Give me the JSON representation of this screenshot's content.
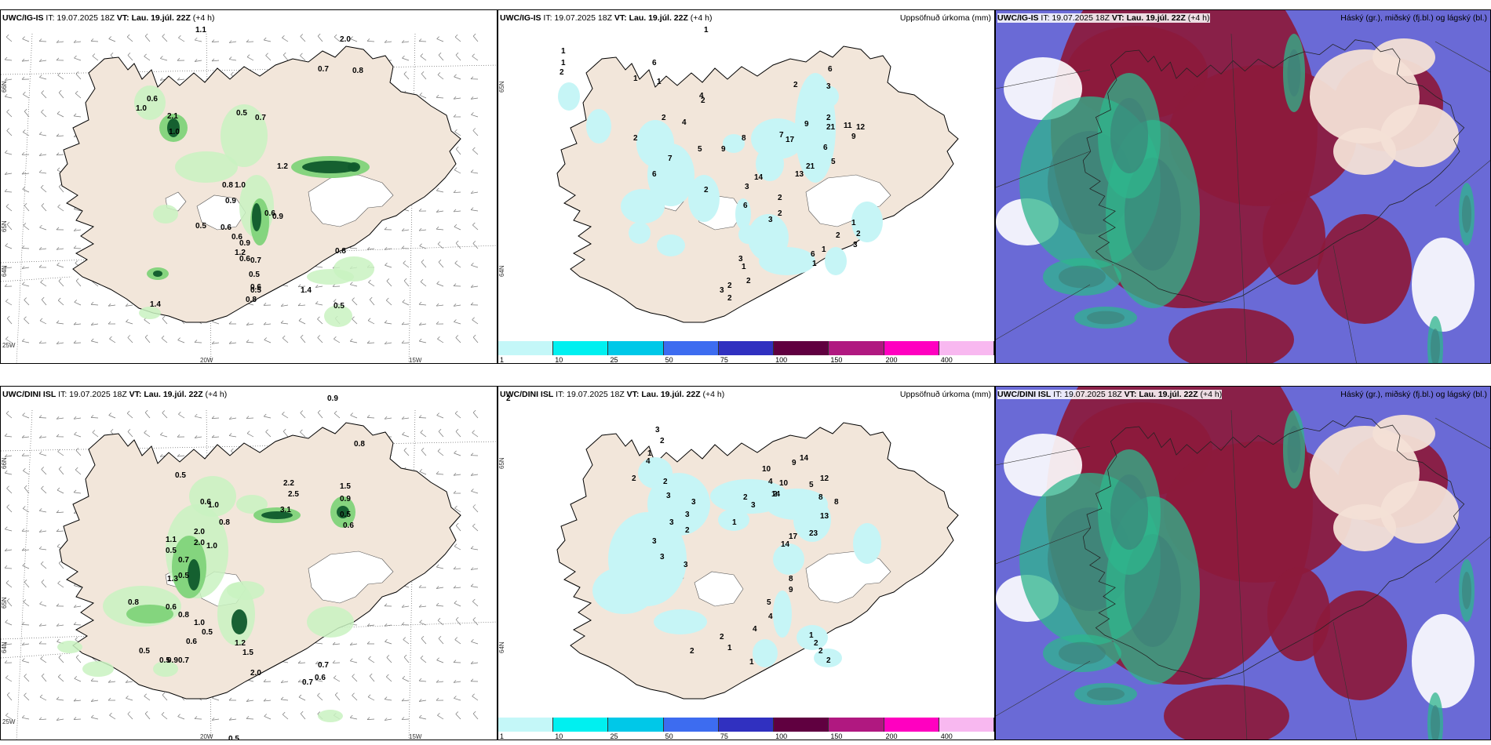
{
  "colors": {
    "land": "#f2e6da",
    "green_light": "#c9f2c1",
    "green_mid": "#7fd37a",
    "green_dark": "#0f5a2c",
    "cyan": "#c6f5f6",
    "cloud_blue": "#6a6ad6",
    "cloud_red": "#8c1a3c",
    "cloud_green": "#2fb58c"
  },
  "top": {
    "p1": {
      "model": "UWC/IG-IS",
      "it": "IT: 19.07.2025 18Z",
      "vt_label": "VT:",
      "vt": "Lau. 19.júl. 22Z",
      "lead": "(+4 h)",
      "lat_ticks": [
        "66N",
        "64N",
        "65N"
      ],
      "lon_ticks": [
        "20W",
        "15W",
        "25W"
      ],
      "labels": [
        [
          "1.1",
          0.74
        ],
        [
          "2.0",
          0.8
        ],
        [
          "0.7",
          0.62
        ],
        [
          "0.8",
          0.69
        ],
        [
          "0.6",
          0.52
        ],
        [
          "1.0",
          0.55
        ],
        [
          "2.1",
          0.6
        ],
        [
          "1.0",
          0.63
        ],
        [
          "0.5",
          0.48
        ],
        [
          "0.7",
          0.52
        ],
        [
          "1.2",
          0.36
        ],
        [
          "0.8",
          0.46
        ],
        [
          "1.0",
          0.5
        ],
        [
          "0.9",
          0.43
        ],
        [
          "0.6",
          0.55
        ],
        [
          "0.9",
          0.57
        ],
        [
          "0.5",
          0.41
        ],
        [
          "0.6",
          0.47
        ],
        [
          "0.6",
          0.5
        ],
        [
          "0.9",
          0.48
        ],
        [
          "1.2",
          0.53
        ],
        [
          "0.6",
          0.56
        ],
        [
          "0.7",
          0.52
        ],
        [
          "0.5",
          0.47
        ],
        [
          "0.6",
          0.5
        ],
        [
          "0.5",
          0.55
        ],
        [
          "0.8",
          0.61
        ],
        [
          "1.4",
          0.34
        ],
        [
          "1.4",
          0.3
        ],
        [
          "0.8",
          0.66
        ],
        [
          "0.5",
          0.68
        ]
      ]
    },
    "p2": {
      "model": "UWC/IG-IS",
      "it": "IT: 19.07.2025 18Z",
      "vt_label": "VT:",
      "vt": "Lau. 19.júl. 22Z",
      "lead": "(+4 h)",
      "title": "Uppsöfnuð úrkoma (mm)",
      "lat_ticks": [
        "65N",
        "64N"
      ],
      "labels": [
        "1",
        "1",
        "1",
        "2",
        "1",
        "6",
        "1",
        "2",
        "4",
        "2",
        "4",
        "2",
        "2",
        "6",
        "3",
        "2",
        "21",
        "11",
        "12",
        "9",
        "7",
        "17",
        "9",
        "6",
        "5",
        "21",
        "13",
        "8",
        "9",
        "5",
        "7",
        "6",
        "2",
        "14",
        "3",
        "6",
        "2",
        "2",
        "3",
        "3",
        "1",
        "2",
        "3",
        "2",
        "2",
        "1",
        "6",
        "1",
        "2",
        "1",
        "2",
        "3"
      ],
      "legend": [
        "1",
        "10",
        "25",
        "50",
        "75",
        "100",
        "150",
        "200",
        "400"
      ],
      "legend_colors": [
        "#c4f7f8",
        "#00f0f0",
        "#00c8e8",
        "#3d6cf0",
        "#3030c0",
        "#600040",
        "#b01880",
        "#ff00c0",
        "#f8b8f0"
      ]
    },
    "p3": {
      "model": "UWC/IG-IS",
      "it": "IT: 19.07.2025 18Z",
      "vt_label": "VT:",
      "vt": "Lau. 19.júl. 22Z",
      "lead": "(+4 h)",
      "title": "Háský (gr.), miðský (fj.bl.) og lágský (bl.)"
    }
  },
  "bottom": {
    "p1": {
      "model": "UWC/DINI ISL",
      "it": "IT: 19.07.2025 18Z",
      "vt_label": "VT:",
      "vt": "Lau. 19.júl. 22Z",
      "lead": "(+4 h)",
      "lat_ticks": [
        "66N",
        "64N",
        "65N"
      ],
      "lon_ticks": [
        "20W",
        "15W",
        "25W"
      ],
      "labels": [
        "0.9",
        "0.8",
        "0.5",
        "2.2",
        "2.5",
        "3.1",
        "0.6",
        "1.0",
        "0.8",
        "2.0",
        "2.0",
        "1.0",
        "1.1",
        "0.5",
        "0.7",
        "0.5",
        "1.3",
        "0.8",
        "0.6",
        "0.8",
        "1.0",
        "0.5",
        "0.6",
        "0.9",
        "0.5",
        "0.7",
        "0.5",
        "1.2",
        "1.5",
        "2.0",
        "1.5",
        "0.9",
        "0.5",
        "0.6",
        "0.7",
        "0.6",
        "0.7",
        "0.5"
      ]
    },
    "p2": {
      "model": "UWC/DINI ISL",
      "it": "IT: 19.07.2025 18Z",
      "vt_label": "VT:",
      "vt": "Lau. 19.júl. 22Z",
      "lead": "(+4 h)",
      "title": "Uppsöfnuð úrkoma (mm)",
      "lat_ticks": [
        "65N",
        "64N"
      ],
      "labels": [
        "2",
        "3",
        "2",
        "1",
        "4",
        "2",
        "2",
        "3",
        "3",
        "3",
        "3",
        "2",
        "3",
        "3",
        "3",
        "10",
        "4",
        "2",
        "2",
        "3",
        "1",
        "14",
        "10",
        "9",
        "14",
        "12",
        "5",
        "8",
        "8",
        "13",
        "23",
        "17",
        "14",
        "8",
        "9",
        "5",
        "4",
        "4",
        "2",
        "1",
        "2",
        "1",
        "1",
        "2",
        "2",
        "2"
      ],
      "legend": [
        "1",
        "10",
        "25",
        "50",
        "75",
        "100",
        "150",
        "200",
        "400"
      ],
      "legend_colors": [
        "#c4f7f8",
        "#00f0f0",
        "#00c8e8",
        "#3d6cf0",
        "#3030c0",
        "#600040",
        "#b01880",
        "#ff00c0",
        "#f8b8f0"
      ]
    },
    "p3": {
      "model": "UWC/DINI ISL",
      "it": "IT: 19.07.2025 18Z",
      "vt_label": "VT:",
      "vt": "Lau. 19.júl. 22Z",
      "lead": "(+4 h)",
      "title": "Háský (gr.), miðský (fj.bl.) og lágský (bl.)"
    }
  }
}
